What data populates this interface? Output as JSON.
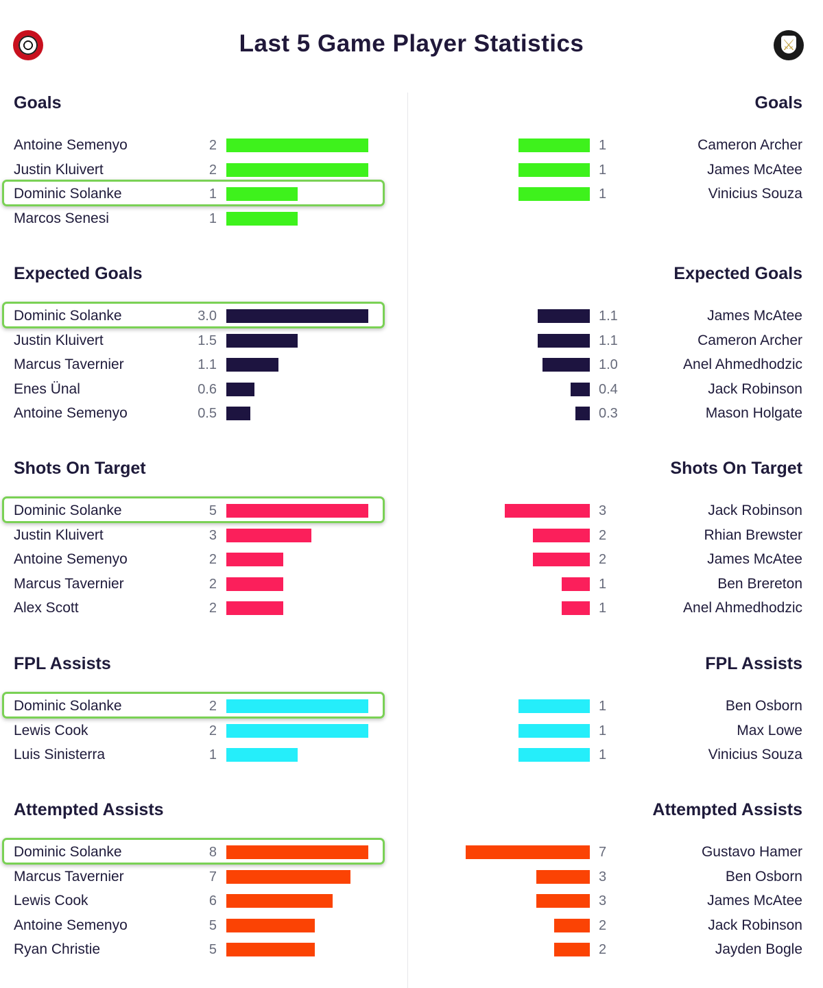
{
  "header": {
    "title": "Last 5 Game Player Statistics",
    "left_crest_icon": "bournemouth-crest-icon",
    "right_crest_icon": "sheffield-united-crest-icon"
  },
  "chart_data": {
    "type": "bar",
    "orientation": "horizontal-mirrored",
    "highlight_player": "Dominic Solanke",
    "sections": [
      {
        "title": "Goals",
        "color": "#3ef21c",
        "left": [
          {
            "player": "Antoine Semenyo",
            "value": 2,
            "label": "2"
          },
          {
            "player": "Justin Kluivert",
            "value": 2,
            "label": "2"
          },
          {
            "player": "Dominic Solanke",
            "value": 1,
            "label": "1"
          },
          {
            "player": "Marcos Senesi",
            "value": 1,
            "label": "1"
          }
        ],
        "right": [
          {
            "player": "Cameron Archer",
            "value": 1,
            "label": "1"
          },
          {
            "player": "James McAtee",
            "value": 1,
            "label": "1"
          },
          {
            "player": "Vinicius Souza",
            "value": 1,
            "label": "1"
          }
        ]
      },
      {
        "title": "Expected Goals",
        "color": "#1d1440",
        "left": [
          {
            "player": "Dominic Solanke",
            "value": 3.0,
            "label": "3.0"
          },
          {
            "player": "Justin Kluivert",
            "value": 1.5,
            "label": "1.5"
          },
          {
            "player": "Marcus Tavernier",
            "value": 1.1,
            "label": "1.1"
          },
          {
            "player": "Enes Ünal",
            "value": 0.6,
            "label": "0.6"
          },
          {
            "player": "Antoine Semenyo",
            "value": 0.5,
            "label": "0.5"
          }
        ],
        "right": [
          {
            "player": "James McAtee",
            "value": 1.1,
            "label": "1.1"
          },
          {
            "player": "Cameron Archer",
            "value": 1.1,
            "label": "1.1"
          },
          {
            "player": "Anel Ahmedhodzic",
            "value": 1.0,
            "label": "1.0"
          },
          {
            "player": "Jack Robinson",
            "value": 0.4,
            "label": "0.4"
          },
          {
            "player": "Mason Holgate",
            "value": 0.3,
            "label": "0.3"
          }
        ]
      },
      {
        "title": "Shots On Target",
        "color": "#fb1f5b",
        "left": [
          {
            "player": "Dominic Solanke",
            "value": 5,
            "label": "5"
          },
          {
            "player": "Justin Kluivert",
            "value": 3,
            "label": "3"
          },
          {
            "player": "Antoine Semenyo",
            "value": 2,
            "label": "2"
          },
          {
            "player": "Marcus Tavernier",
            "value": 2,
            "label": "2"
          },
          {
            "player": "Alex Scott",
            "value": 2,
            "label": "2"
          }
        ],
        "right": [
          {
            "player": "Jack Robinson",
            "value": 3,
            "label": "3"
          },
          {
            "player": "Rhian Brewster",
            "value": 2,
            "label": "2"
          },
          {
            "player": "James McAtee",
            "value": 2,
            "label": "2"
          },
          {
            "player": "Ben Brereton",
            "value": 1,
            "label": "1"
          },
          {
            "player": "Anel Ahmedhodzic",
            "value": 1,
            "label": "1"
          }
        ]
      },
      {
        "title": "FPL Assists",
        "color": "#25eefa",
        "left": [
          {
            "player": "Dominic Solanke",
            "value": 2,
            "label": "2"
          },
          {
            "player": "Lewis Cook",
            "value": 2,
            "label": "2"
          },
          {
            "player": "Luis Sinisterra",
            "value": 1,
            "label": "1"
          }
        ],
        "right": [
          {
            "player": "Ben Osborn",
            "value": 1,
            "label": "1"
          },
          {
            "player": "Max Lowe",
            "value": 1,
            "label": "1"
          },
          {
            "player": "Vinicius Souza",
            "value": 1,
            "label": "1"
          }
        ]
      },
      {
        "title": "Attempted Assists",
        "color": "#fb4304",
        "left": [
          {
            "player": "Dominic Solanke",
            "value": 8,
            "label": "8"
          },
          {
            "player": "Marcus Tavernier",
            "value": 7,
            "label": "7"
          },
          {
            "player": "Lewis Cook",
            "value": 6,
            "label": "6"
          },
          {
            "player": "Antoine Semenyo",
            "value": 5,
            "label": "5"
          },
          {
            "player": "Ryan Christie",
            "value": 5,
            "label": "5"
          }
        ],
        "right": [
          {
            "player": "Gustavo Hamer",
            "value": 7,
            "label": "7"
          },
          {
            "player": "Ben Osborn",
            "value": 3,
            "label": "3"
          },
          {
            "player": "James McAtee",
            "value": 3,
            "label": "3"
          },
          {
            "player": "Jack Robinson",
            "value": 2,
            "label": "2"
          },
          {
            "player": "Jayden Bogle",
            "value": 2,
            "label": "2"
          }
        ]
      }
    ]
  }
}
